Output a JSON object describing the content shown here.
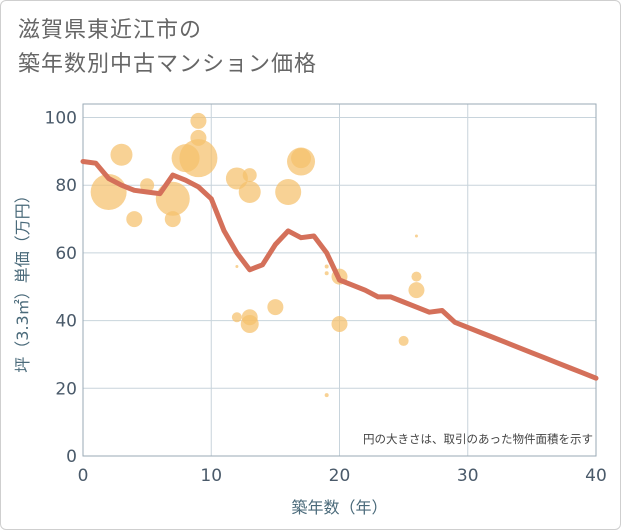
{
  "title_lines": [
    "滋賀県東近江市の",
    "築年数別中古マンション価格"
  ],
  "chart_data": {
    "type": "scatter",
    "xlabel": "築年数（年）",
    "ylabel": "坪（3.3㎡）単価（万円）",
    "xlim": [
      0,
      40
    ],
    "ylim": [
      0,
      104
    ],
    "x_ticks": [
      0,
      10,
      20,
      30,
      40
    ],
    "y_ticks": [
      0,
      20,
      40,
      60,
      80,
      100
    ],
    "grid": true,
    "annotation": "円の大きさは、取引のあった物件面積を示す",
    "colors": {
      "bubble": "#f5c06c",
      "line": "#d4705a",
      "grid": "#c8d4dc",
      "plot_border": "#9aaab6"
    },
    "bubbles": [
      {
        "x": 2,
        "y": 78,
        "size": 18
      },
      {
        "x": 3,
        "y": 89,
        "size": 11
      },
      {
        "x": 4,
        "y": 70,
        "size": 8
      },
      {
        "x": 5,
        "y": 80,
        "size": 7
      },
      {
        "x": 7,
        "y": 76,
        "size": 17
      },
      {
        "x": 7,
        "y": 70,
        "size": 8
      },
      {
        "x": 8,
        "y": 88,
        "size": 14
      },
      {
        "x": 9,
        "y": 99,
        "size": 8
      },
      {
        "x": 9,
        "y": 94,
        "size": 8
      },
      {
        "x": 9,
        "y": 88,
        "size": 19
      },
      {
        "x": 12,
        "y": 82,
        "size": 11
      },
      {
        "x": 12,
        "y": 56,
        "size": 1.5
      },
      {
        "x": 12,
        "y": 41,
        "size": 5
      },
      {
        "x": 13,
        "y": 83,
        "size": 7
      },
      {
        "x": 13,
        "y": 78,
        "size": 11
      },
      {
        "x": 13,
        "y": 41,
        "size": 8
      },
      {
        "x": 13,
        "y": 39,
        "size": 9
      },
      {
        "x": 15,
        "y": 44,
        "size": 8
      },
      {
        "x": 16,
        "y": 78,
        "size": 13
      },
      {
        "x": 17,
        "y": 87,
        "size": 14
      },
      {
        "x": 17,
        "y": 88,
        "size": 10
      },
      {
        "x": 19,
        "y": 56,
        "size": 2
      },
      {
        "x": 19,
        "y": 54,
        "size": 2
      },
      {
        "x": 19,
        "y": 18,
        "size": 2
      },
      {
        "x": 20,
        "y": 53,
        "size": 8
      },
      {
        "x": 20,
        "y": 39,
        "size": 8
      },
      {
        "x": 25,
        "y": 34,
        "size": 5
      },
      {
        "x": 26,
        "y": 65,
        "size": 1.5
      },
      {
        "x": 26,
        "y": 53,
        "size": 5
      },
      {
        "x": 26,
        "y": 49,
        "size": 8
      }
    ],
    "trend_line": {
      "x": [
        0,
        1,
        2,
        3,
        4,
        5,
        6,
        7,
        8,
        9,
        10,
        11,
        12,
        13,
        14,
        15,
        16,
        17,
        18,
        19,
        20,
        21,
        22,
        23,
        24,
        25,
        26,
        27,
        28,
        29,
        30,
        31,
        32,
        33,
        34,
        35,
        36,
        37,
        38,
        39,
        40
      ],
      "y": [
        87,
        86.5,
        82,
        80,
        78.5,
        78,
        77.5,
        83,
        81.5,
        79.5,
        76,
        66.5,
        60,
        55,
        56.5,
        62.5,
        66.5,
        64.5,
        65,
        60,
        52,
        50.5,
        49,
        47,
        47,
        45.5,
        44,
        42.5,
        43,
        39.5,
        38,
        36.5,
        35,
        33.5,
        32,
        30.5,
        29,
        27.5,
        26,
        24.5,
        23
      ]
    }
  }
}
